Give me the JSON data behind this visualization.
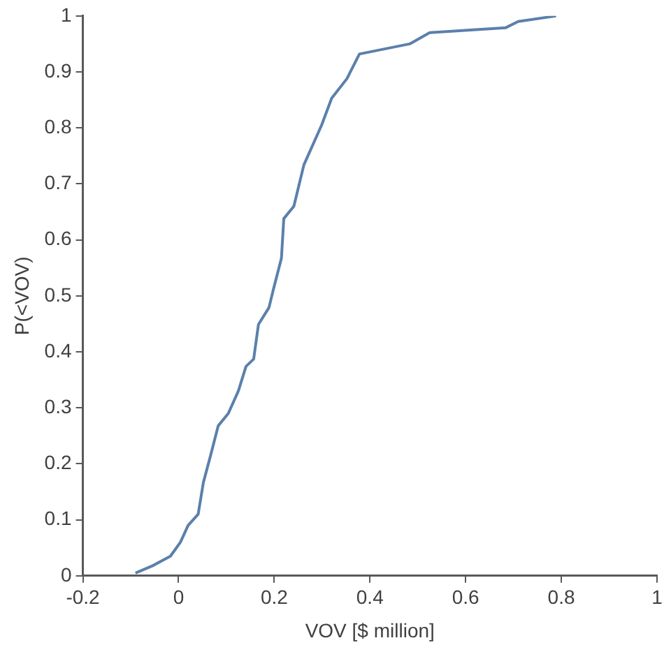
{
  "chart_data": {
    "type": "line",
    "xlabel": "VOV [$ million]",
    "ylabel": "P(<VOV)",
    "x": [
      -0.09,
      -0.054,
      -0.017,
      0.004,
      0.02,
      0.041,
      0.052,
      0.067,
      0.083,
      0.104,
      0.125,
      0.141,
      0.157,
      0.167,
      0.189,
      0.199,
      0.215,
      0.22,
      0.241,
      0.262,
      0.299,
      0.32,
      0.352,
      0.378,
      0.483,
      0.525,
      0.684,
      0.71,
      0.789
    ],
    "series": [
      {
        "color": "#5b80ab",
        "values": [
          0.005,
          0.018,
          0.035,
          0.06,
          0.09,
          0.11,
          0.167,
          0.215,
          0.268,
          0.29,
          0.33,
          0.374,
          0.387,
          0.449,
          0.479,
          0.514,
          0.567,
          0.638,
          0.66,
          0.734,
          0.805,
          0.853,
          0.888,
          0.932,
          0.95,
          0.97,
          0.979,
          0.99,
          1.0
        ]
      }
    ],
    "xlim": [
      -0.2,
      1
    ],
    "xticks": [
      -0.2,
      0,
      0.2,
      0.4,
      0.6,
      0.8,
      1
    ],
    "ylim": [
      0,
      1
    ],
    "yticks": [
      0,
      0.1,
      0.2,
      0.3,
      0.4,
      0.5,
      0.6,
      0.7,
      0.8,
      0.9,
      1
    ],
    "grid": false,
    "legend": false,
    "marker": "none",
    "line_style": "solid"
  }
}
